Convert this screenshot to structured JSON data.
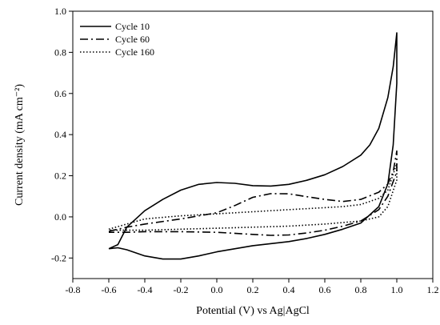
{
  "chart_data": {
    "type": "line",
    "title": "",
    "xlabel": "Potential (V) vs Ag|AgCl",
    "ylabel": "Current density (mA cm⁻²)",
    "xlim": [
      -0.8,
      1.2
    ],
    "ylim": [
      -0.3,
      1.0
    ],
    "x_ticks": [
      -0.8,
      -0.6,
      -0.4,
      -0.2,
      0.0,
      0.2,
      0.4,
      0.6,
      0.8,
      1.0,
      1.2
    ],
    "x_tick_labels": [
      "-0.8",
      "-0.6",
      "-0.4",
      "-0.2",
      "0.0",
      "0.2",
      "0.4",
      "0.6",
      "0.8",
      "1.0",
      "1.2"
    ],
    "y_ticks": [
      -0.2,
      0.0,
      0.2,
      0.4,
      0.6,
      0.8,
      1.0
    ],
    "y_tick_labels": [
      "-0.2",
      "0.0",
      "0.2",
      "0.4",
      "0.6",
      "0.8",
      "1.0"
    ],
    "grid": false,
    "legend_position": "top-left",
    "series": [
      {
        "name": "Cycle 10",
        "dash": "solid",
        "color": "#000000",
        "points": [
          [
            -0.6,
            -0.155
          ],
          [
            -0.55,
            -0.135
          ],
          [
            -0.5,
            -0.05
          ],
          [
            -0.4,
            0.03
          ],
          [
            -0.3,
            0.085
          ],
          [
            -0.2,
            0.13
          ],
          [
            -0.1,
            0.158
          ],
          [
            0.0,
            0.167
          ],
          [
            0.1,
            0.163
          ],
          [
            0.2,
            0.152
          ],
          [
            0.3,
            0.15
          ],
          [
            0.4,
            0.158
          ],
          [
            0.5,
            0.178
          ],
          [
            0.6,
            0.205
          ],
          [
            0.7,
            0.245
          ],
          [
            0.8,
            0.3
          ],
          [
            0.85,
            0.35
          ],
          [
            0.9,
            0.43
          ],
          [
            0.95,
            0.58
          ],
          [
            0.98,
            0.73
          ],
          [
            1.0,
            0.895
          ],
          [
            1.0,
            0.65
          ],
          [
            0.98,
            0.35
          ],
          [
            0.95,
            0.16
          ],
          [
            0.9,
            0.05
          ],
          [
            0.8,
            -0.03
          ],
          [
            0.7,
            -0.06
          ],
          [
            0.6,
            -0.085
          ],
          [
            0.5,
            -0.105
          ],
          [
            0.4,
            -0.12
          ],
          [
            0.2,
            -0.14
          ],
          [
            0.0,
            -0.17
          ],
          [
            -0.1,
            -0.19
          ],
          [
            -0.2,
            -0.205
          ],
          [
            -0.3,
            -0.205
          ],
          [
            -0.4,
            -0.19
          ],
          [
            -0.5,
            -0.16
          ],
          [
            -0.55,
            -0.15
          ],
          [
            -0.6,
            -0.155
          ]
        ]
      },
      {
        "name": "Cycle 60",
        "dash": "dashdot",
        "color": "#000000",
        "points": [
          [
            -0.6,
            -0.07
          ],
          [
            -0.5,
            -0.05
          ],
          [
            -0.4,
            -0.035
          ],
          [
            -0.2,
            -0.01
          ],
          [
            0.0,
            0.02
          ],
          [
            0.1,
            0.055
          ],
          [
            0.2,
            0.095
          ],
          [
            0.3,
            0.113
          ],
          [
            0.4,
            0.112
          ],
          [
            0.5,
            0.098
          ],
          [
            0.6,
            0.085
          ],
          [
            0.7,
            0.075
          ],
          [
            0.8,
            0.085
          ],
          [
            0.9,
            0.12
          ],
          [
            0.95,
            0.16
          ],
          [
            0.98,
            0.22
          ],
          [
            1.0,
            0.32
          ],
          [
            1.0,
            0.22
          ],
          [
            0.95,
            0.1
          ],
          [
            0.9,
            0.035
          ],
          [
            0.8,
            -0.02
          ],
          [
            0.7,
            -0.045
          ],
          [
            0.6,
            -0.065
          ],
          [
            0.5,
            -0.078
          ],
          [
            0.4,
            -0.088
          ],
          [
            0.3,
            -0.09
          ],
          [
            0.2,
            -0.085
          ],
          [
            0.0,
            -0.075
          ],
          [
            -0.2,
            -0.072
          ],
          [
            -0.4,
            -0.072
          ],
          [
            -0.5,
            -0.075
          ],
          [
            -0.6,
            -0.075
          ]
        ]
      },
      {
        "name": "Cycle 160",
        "dash": "dotted",
        "color": "#000000",
        "points": [
          [
            -0.6,
            -0.06
          ],
          [
            -0.5,
            -0.035
          ],
          [
            -0.4,
            -0.01
          ],
          [
            -0.2,
            0.005
          ],
          [
            0.0,
            0.015
          ],
          [
            0.2,
            0.025
          ],
          [
            0.4,
            0.035
          ],
          [
            0.6,
            0.045
          ],
          [
            0.7,
            0.05
          ],
          [
            0.8,
            0.06
          ],
          [
            0.9,
            0.09
          ],
          [
            0.95,
            0.13
          ],
          [
            1.0,
            0.26
          ],
          [
            1.0,
            0.18
          ],
          [
            0.95,
            0.05
          ],
          [
            0.9,
            0.0
          ],
          [
            0.8,
            -0.02
          ],
          [
            0.6,
            -0.035
          ],
          [
            0.4,
            -0.045
          ],
          [
            0.2,
            -0.05
          ],
          [
            0.0,
            -0.055
          ],
          [
            -0.2,
            -0.06
          ],
          [
            -0.4,
            -0.065
          ],
          [
            -0.6,
            -0.065
          ]
        ]
      }
    ]
  }
}
